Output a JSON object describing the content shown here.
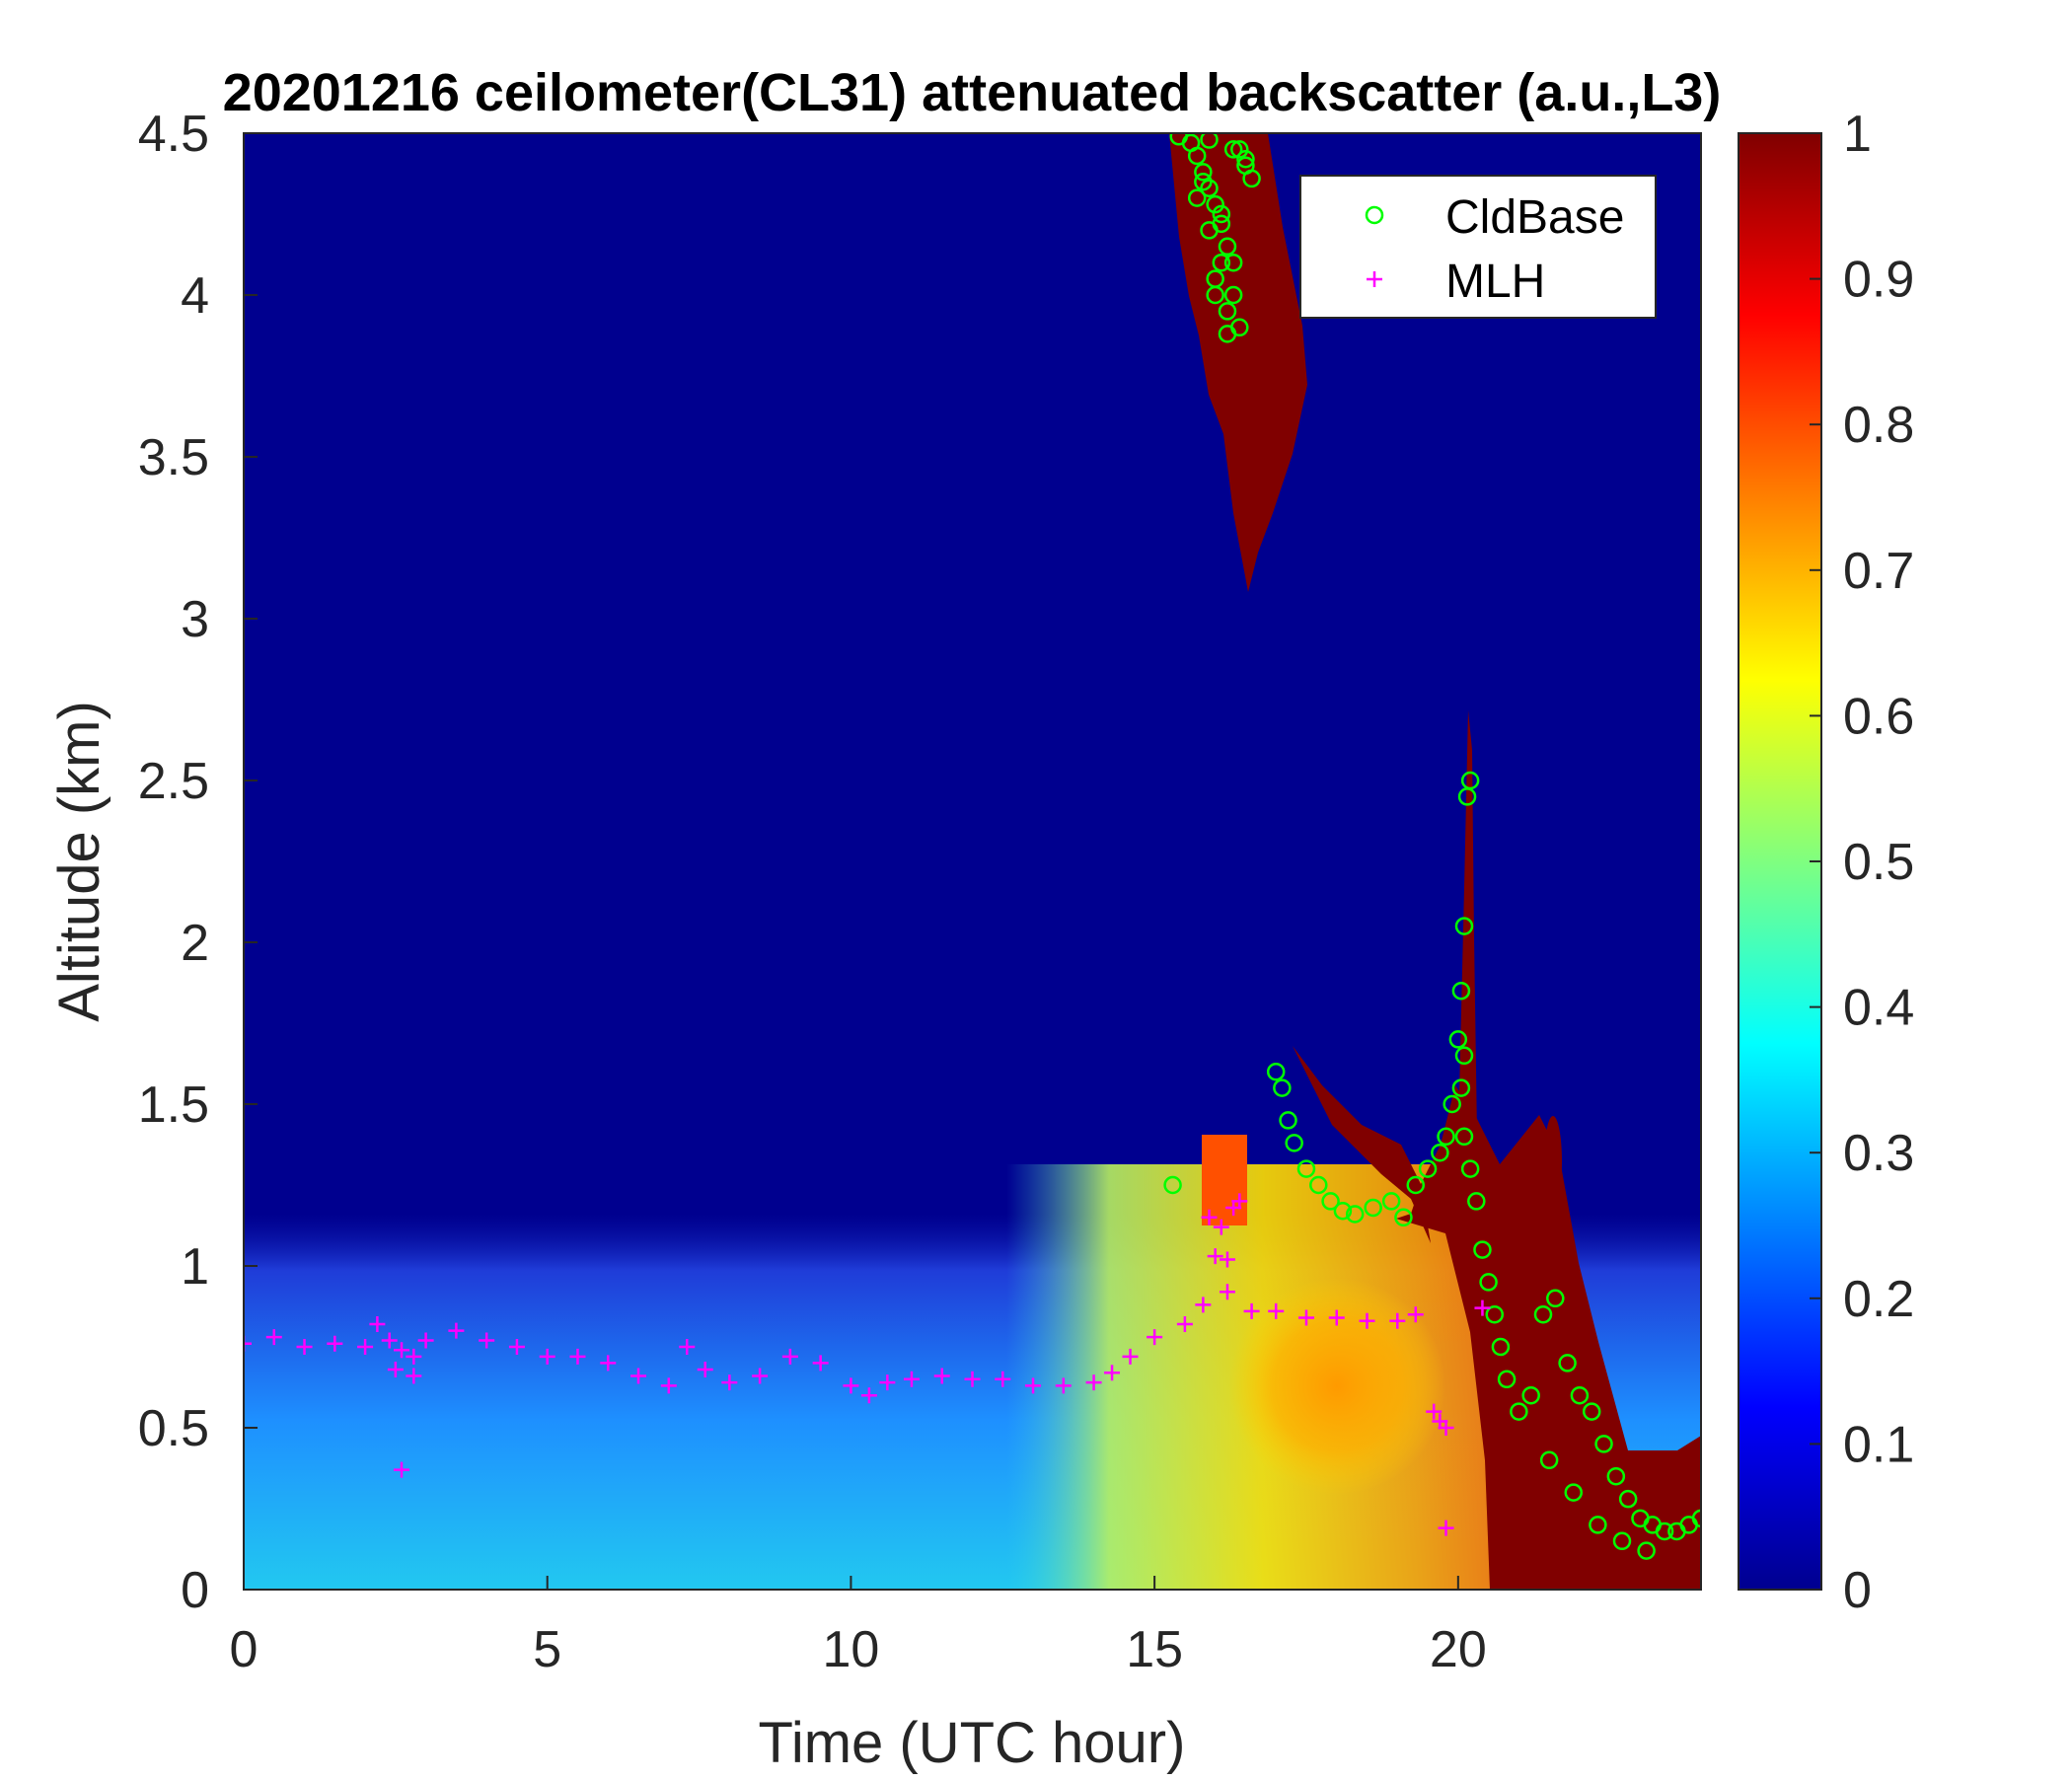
{
  "chart_data": {
    "type": "heatmap",
    "title": "20201216 ceilometer(CL31) attenuated backscatter (a.u.,L3)",
    "xlabel": "Time (UTC hour)",
    "ylabel": "Altitude (km)",
    "xlim": [
      0,
      24
    ],
    "ylim": [
      0,
      4.5
    ],
    "x_ticks": [
      0,
      5,
      10,
      15,
      20
    ],
    "x_tick_labels": [
      "0",
      "5",
      "10",
      "15",
      "20"
    ],
    "y_ticks": [
      0,
      0.5,
      1,
      1.5,
      2,
      2.5,
      3,
      3.5,
      4,
      4.5
    ],
    "y_tick_labels": [
      "0",
      "0.5",
      "1",
      "1.5",
      "2",
      "2.5",
      "3",
      "3.5",
      "4",
      "4.5"
    ],
    "colorbar": {
      "colormap": "jet",
      "range": [
        0,
        1
      ],
      "ticks": [
        0,
        0.1,
        0.2,
        0.3,
        0.4,
        0.5,
        0.6,
        0.7,
        0.8,
        0.9,
        1
      ],
      "tick_labels": [
        "0",
        "0.1",
        "0.2",
        "0.3",
        "0.4",
        "0.5",
        "0.6",
        "0.7",
        "0.8",
        "0.9",
        "1"
      ]
    },
    "legend": {
      "placement": "top-right",
      "entries": [
        {
          "name": "CldBase",
          "marker": "circle",
          "color": "#00ff00"
        },
        {
          "name": "MLH",
          "marker": "plus",
          "color": "#ff00ff"
        }
      ]
    },
    "series": [
      {
        "name": "CldBase",
        "marker": "circle",
        "color": "#00ff00",
        "x": [
          15.4,
          15.6,
          15.7,
          15.8,
          15.9,
          16.0,
          16.1,
          16.2,
          16.3,
          16.4,
          16.5,
          15.7,
          15.9,
          16.1,
          16.3,
          15.8,
          16.0,
          16.2,
          16.4,
          16.6,
          15.9,
          16.1,
          16.3,
          16.0,
          16.2,
          16.5,
          15.3,
          17.0,
          17.1,
          17.2,
          17.3,
          17.5,
          17.7,
          17.9,
          18.1,
          18.3,
          18.6,
          18.9,
          19.1,
          19.3,
          19.5,
          19.7,
          19.8,
          19.9,
          20.0,
          20.05,
          20.1,
          20.15,
          20.2,
          20.1,
          20.05,
          20.1,
          20.2,
          20.3,
          20.4,
          20.5,
          20.6,
          20.7,
          20.8,
          21.0,
          21.2,
          21.4,
          21.6,
          21.8,
          22.0,
          22.2,
          22.4,
          22.6,
          22.8,
          23.0,
          23.2,
          23.4,
          23.6,
          23.8,
          24.0,
          21.5,
          21.9,
          22.3,
          22.7,
          23.1
        ],
        "y": [
          4.49,
          4.47,
          4.43,
          4.38,
          4.33,
          4.28,
          4.22,
          4.15,
          4.1,
          4.45,
          4.4,
          4.3,
          4.2,
          4.1,
          4.0,
          4.35,
          4.05,
          3.95,
          3.9,
          4.36,
          4.48,
          4.25,
          4.45,
          4.0,
          3.88,
          4.42,
          1.25,
          1.6,
          1.55,
          1.45,
          1.38,
          1.3,
          1.25,
          1.2,
          1.17,
          1.16,
          1.18,
          1.2,
          1.15,
          1.25,
          1.3,
          1.35,
          1.4,
          1.5,
          1.7,
          1.85,
          2.05,
          2.45,
          2.5,
          1.65,
          1.55,
          1.4,
          1.3,
          1.2,
          1.05,
          0.95,
          0.85,
          0.75,
          0.65,
          0.55,
          0.6,
          0.85,
          0.9,
          0.7,
          0.6,
          0.55,
          0.45,
          0.35,
          0.28,
          0.22,
          0.2,
          0.18,
          0.18,
          0.2,
          0.22,
          0.4,
          0.3,
          0.2,
          0.15,
          0.12
        ]
      },
      {
        "name": "MLH",
        "marker": "plus",
        "color": "#ff00ff",
        "x": [
          0,
          0.5,
          1.0,
          1.5,
          2.0,
          2.2,
          2.4,
          2.6,
          2.8,
          3.0,
          3.5,
          4.0,
          4.5,
          5.0,
          5.5,
          6.0,
          6.5,
          7.0,
          7.3,
          7.6,
          8.0,
          8.5,
          9.0,
          9.5,
          10.0,
          10.3,
          10.6,
          11.0,
          11.5,
          12.0,
          12.5,
          13.0,
          13.5,
          14.0,
          14.3,
          14.6,
          15.0,
          15.5,
          15.8,
          16.2,
          16.6,
          17.0,
          17.5,
          18.0,
          18.5,
          19.0,
          2.5,
          2.8,
          2.6,
          15.9,
          16.1,
          16.3,
          16.4,
          16.0,
          16.2,
          19.3,
          19.6,
          19.7,
          19.8,
          19.8,
          20.4
        ],
        "y": [
          0.76,
          0.78,
          0.75,
          0.76,
          0.75,
          0.82,
          0.77,
          0.74,
          0.72,
          0.77,
          0.8,
          0.77,
          0.75,
          0.72,
          0.72,
          0.7,
          0.66,
          0.63,
          0.75,
          0.68,
          0.64,
          0.66,
          0.72,
          0.7,
          0.63,
          0.6,
          0.64,
          0.65,
          0.66,
          0.65,
          0.65,
          0.63,
          0.63,
          0.64,
          0.67,
          0.72,
          0.78,
          0.82,
          0.88,
          0.92,
          0.86,
          0.86,
          0.84,
          0.84,
          0.83,
          0.83,
          0.68,
          0.66,
          0.37,
          1.15,
          1.12,
          1.18,
          1.2,
          1.03,
          1.02,
          0.85,
          0.55,
          0.52,
          0.5,
          0.19,
          0.87
        ]
      }
    ]
  }
}
